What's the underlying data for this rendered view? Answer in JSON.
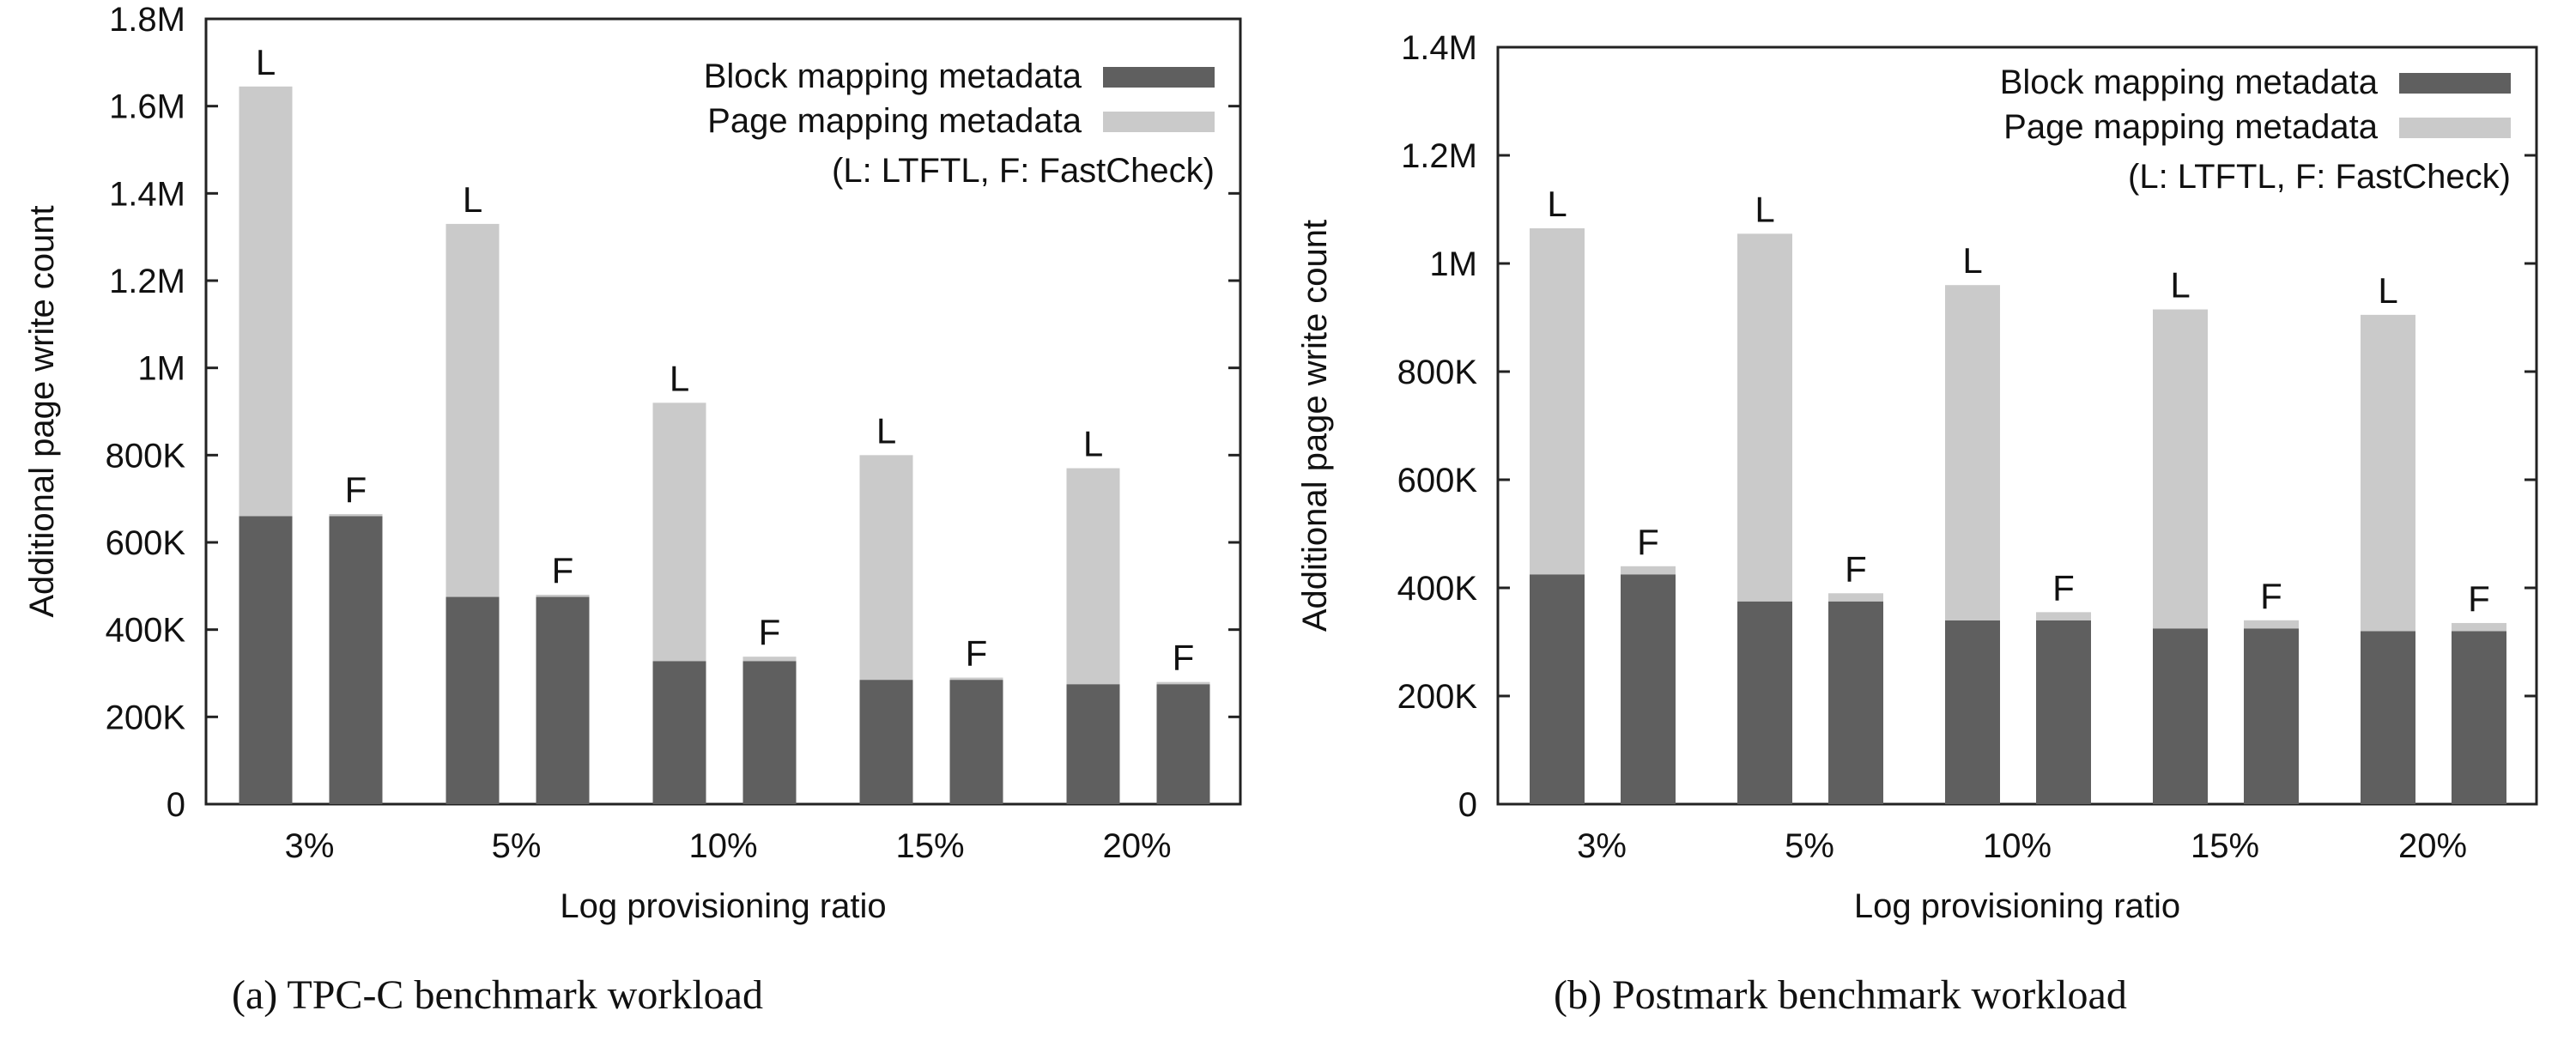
{
  "chart_data": [
    {
      "type": "bar",
      "stacked": true,
      "subfigure": "a",
      "caption": "(a)  TPC-C benchmark workload",
      "xlabel": "Log provisioning ratio",
      "ylabel": "Additional page write count",
      "ylim": [
        0,
        1800000
      ],
      "yticks": [
        {
          "value": 0,
          "label": "0"
        },
        {
          "value": 200000,
          "label": "200K"
        },
        {
          "value": 400000,
          "label": "400K"
        },
        {
          "value": 600000,
          "label": "600K"
        },
        {
          "value": 800000,
          "label": "800K"
        },
        {
          "value": 1000000,
          "label": "1M"
        },
        {
          "value": 1200000,
          "label": "1.2M"
        },
        {
          "value": 1400000,
          "label": "1.4M"
        },
        {
          "value": 1600000,
          "label": "1.6M"
        },
        {
          "value": 1800000,
          "label": "1.8M"
        }
      ],
      "categories": [
        "3%",
        "5%",
        "10%",
        "15%",
        "20%"
      ],
      "bar_labels": [
        "L",
        "F"
      ],
      "series": [
        {
          "name": "Block mapping metadata",
          "values": {
            "L": [
              660000,
              475000,
              328000,
              285000,
              275000
            ],
            "F": [
              660000,
              475000,
              328000,
              285000,
              275000
            ]
          }
        },
        {
          "name": "Page mapping metadata",
          "values": {
            "L": [
              985000,
              855000,
              592000,
              515000,
              495000
            ],
            "F": [
              5000,
              5000,
              10000,
              5000,
              5000
            ]
          }
        }
      ],
      "legend": {
        "entries": [
          "Block mapping metadata",
          "Page mapping metadata"
        ],
        "note": "(L: LTFTL, F: FastCheck)",
        "placement": "top-right"
      }
    },
    {
      "type": "bar",
      "stacked": true,
      "subfigure": "b",
      "caption": "(b)  Postmark benchmark workload",
      "xlabel": "Log provisioning ratio",
      "ylabel": "Additional page write count",
      "ylim": [
        0,
        1400000
      ],
      "yticks": [
        {
          "value": 0,
          "label": "0"
        },
        {
          "value": 200000,
          "label": "200K"
        },
        {
          "value": 400000,
          "label": "400K"
        },
        {
          "value": 600000,
          "label": "600K"
        },
        {
          "value": 800000,
          "label": "800K"
        },
        {
          "value": 1000000,
          "label": "1M"
        },
        {
          "value": 1200000,
          "label": "1.2M"
        },
        {
          "value": 1400000,
          "label": "1.4M"
        }
      ],
      "categories": [
        "3%",
        "5%",
        "10%",
        "15%",
        "20%"
      ],
      "bar_labels": [
        "L",
        "F"
      ],
      "series": [
        {
          "name": "Block mapping metadata",
          "values": {
            "L": [
              425000,
              375000,
              340000,
              325000,
              320000
            ],
            "F": [
              425000,
              375000,
              340000,
              325000,
              320000
            ]
          }
        },
        {
          "name": "Page mapping metadata",
          "values": {
            "L": [
              640000,
              680000,
              620000,
              590000,
              585000
            ],
            "F": [
              15000,
              15000,
              15000,
              15000,
              15000
            ]
          }
        }
      ],
      "legend": {
        "entries": [
          "Block mapping metadata",
          "Page mapping metadata"
        ],
        "note": "(L: LTFTL, F: FastCheck)",
        "placement": "top-right"
      }
    }
  ],
  "colors": {
    "block": "#5f5f5f",
    "page": "#cacaca"
  }
}
